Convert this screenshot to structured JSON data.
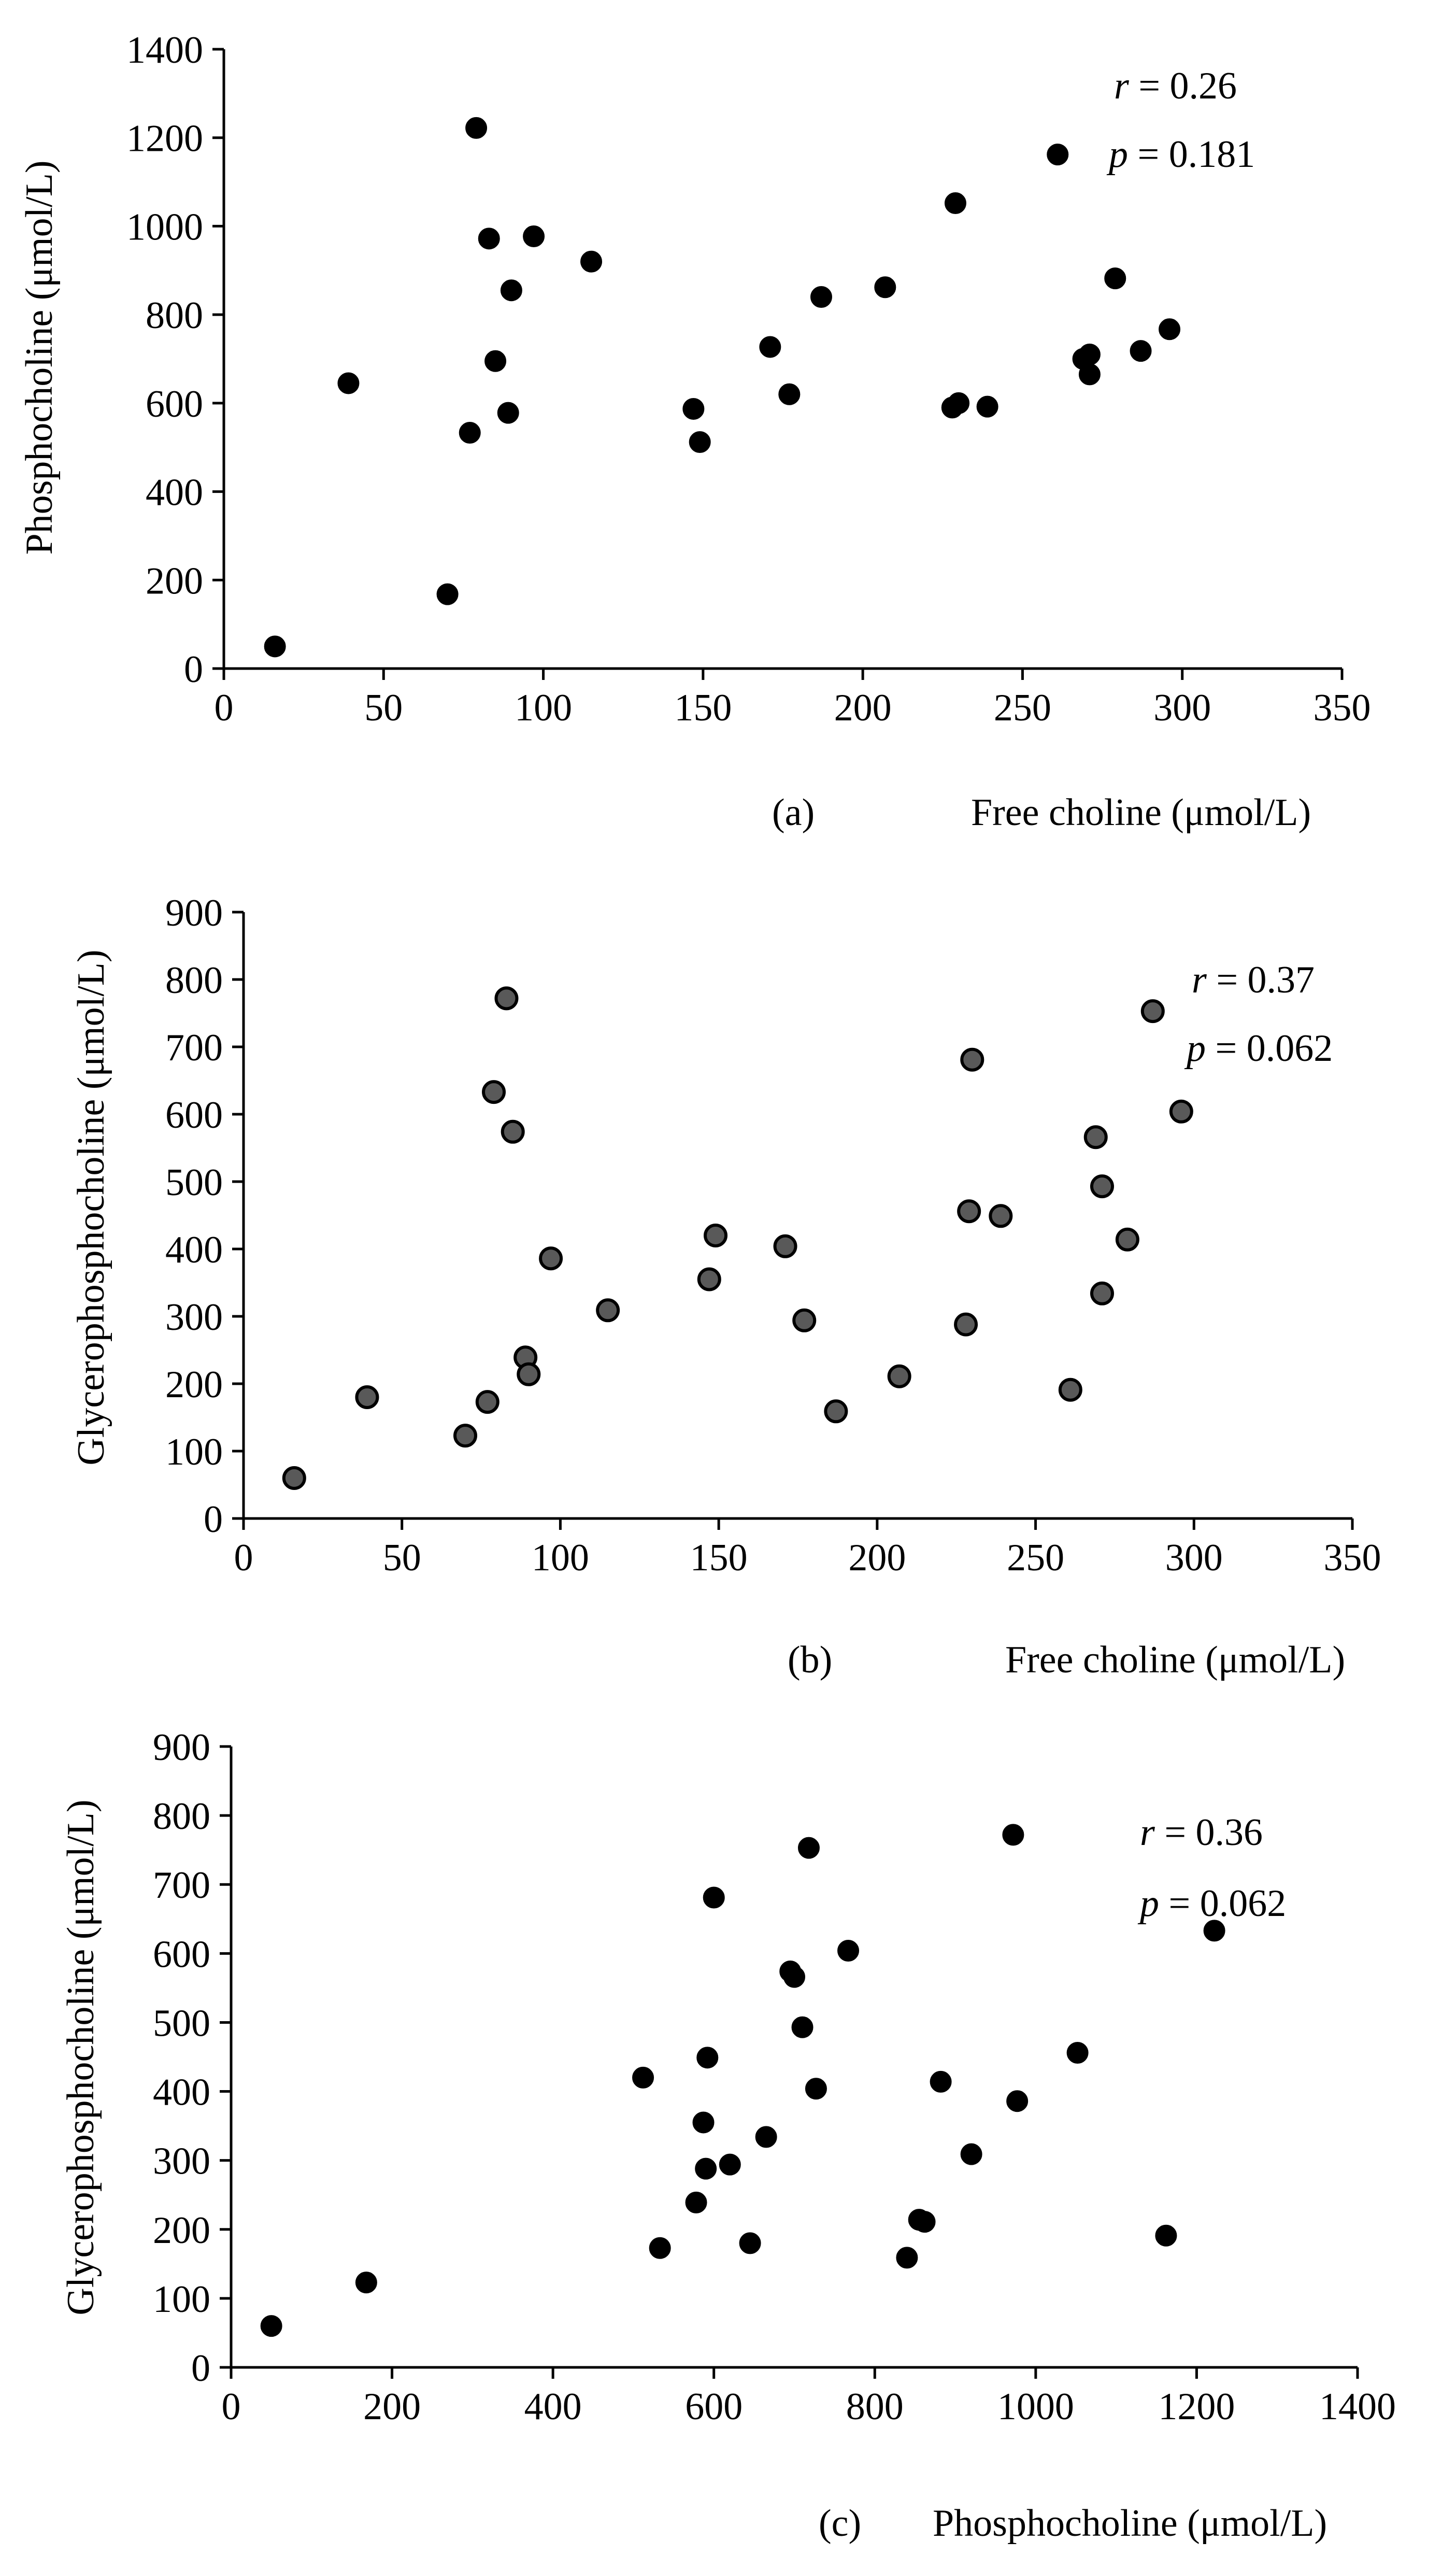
{
  "colors": {
    "axis": "#000000",
    "marker_black": "#000000",
    "marker_gray": "#595959",
    "marker_gray_edge": "#000000",
    "background": "#ffffff"
  },
  "chart_data": [
    {
      "type": "scatter",
      "panel_label": "(a)",
      "title": "",
      "xlabel": "Free choline (μmol/L)",
      "ylabel": "Phosphocholine (μmol/L)",
      "xlim": [
        0,
        350
      ],
      "ylim": [
        0,
        1400
      ],
      "xticks": [
        0,
        50,
        100,
        150,
        200,
        250,
        300,
        350
      ],
      "yticks": [
        0,
        200,
        400,
        600,
        800,
        1000,
        1200,
        1400
      ],
      "grid": false,
      "marker": "black",
      "stats": {
        "r_label": "r",
        "r_text": " = 0.26",
        "p_label": "p",
        "p_text": " = 0.181"
      },
      "points": [
        [
          16,
          50
        ],
        [
          39,
          645
        ],
        [
          70,
          168
        ],
        [
          77,
          533
        ],
        [
          79,
          1222
        ],
        [
          83,
          972
        ],
        [
          85,
          695
        ],
        [
          89,
          578
        ],
        [
          90,
          855
        ],
        [
          97,
          977
        ],
        [
          115,
          920
        ],
        [
          147,
          587
        ],
        [
          149,
          512
        ],
        [
          171,
          727
        ],
        [
          177,
          620
        ],
        [
          187,
          840
        ],
        [
          207,
          862
        ],
        [
          228,
          590
        ],
        [
          229,
          1052
        ],
        [
          230,
          600
        ],
        [
          239,
          592
        ],
        [
          261,
          1162
        ],
        [
          269,
          700
        ],
        [
          271,
          710
        ],
        [
          271,
          665
        ],
        [
          279,
          882
        ],
        [
          287,
          718
        ],
        [
          296,
          767
        ]
      ]
    },
    {
      "type": "scatter",
      "panel_label": "(b)",
      "title": "",
      "xlabel": "Free choline (μmol/L)",
      "ylabel": "Glycerophosphocholine (μmol/L)",
      "xlim": [
        0,
        350
      ],
      "ylim": [
        0,
        900
      ],
      "xticks": [
        0,
        50,
        100,
        150,
        200,
        250,
        300,
        350
      ],
      "yticks": [
        0,
        100,
        200,
        300,
        400,
        500,
        600,
        700,
        800,
        900
      ],
      "grid": false,
      "marker": "gray",
      "stats": {
        "r_label": "r",
        "r_text": " = 0.37",
        "p_label": "p",
        "p_text": " = 0.062"
      },
      "points": [
        [
          16,
          60
        ],
        [
          39,
          180
        ],
        [
          70,
          123
        ],
        [
          77,
          173
        ],
        [
          79,
          633
        ],
        [
          83,
          772
        ],
        [
          85,
          574
        ],
        [
          89,
          239
        ],
        [
          90,
          214
        ],
        [
          97,
          386
        ],
        [
          115,
          309
        ],
        [
          147,
          355
        ],
        [
          149,
          420
        ],
        [
          171,
          404
        ],
        [
          177,
          294
        ],
        [
          187,
          159
        ],
        [
          207,
          211
        ],
        [
          228,
          288
        ],
        [
          229,
          456
        ],
        [
          230,
          681
        ],
        [
          239,
          449
        ],
        [
          261,
          191
        ],
        [
          269,
          566
        ],
        [
          271,
          493
        ],
        [
          271,
          334
        ],
        [
          279,
          414
        ],
        [
          287,
          753
        ],
        [
          296,
          604
        ]
      ]
    },
    {
      "type": "scatter",
      "panel_label": "(c)",
      "title": "",
      "xlabel": "Phosphocholine (μmol/L)",
      "ylabel": "Glycerophosphocholine (μmol/L)",
      "xlim": [
        0,
        1400
      ],
      "ylim": [
        0,
        900
      ],
      "xticks": [
        0,
        200,
        400,
        600,
        800,
        1000,
        1200,
        1400
      ],
      "yticks": [
        0,
        100,
        200,
        300,
        400,
        500,
        600,
        700,
        800,
        900
      ],
      "grid": false,
      "marker": "black",
      "stats": {
        "r_label": "r",
        "r_text": " = 0.36",
        "p_label": "p",
        "p_text": " = 0.062"
      },
      "points": [
        [
          50,
          60
        ],
        [
          168,
          123
        ],
        [
          512,
          420
        ],
        [
          533,
          173
        ],
        [
          578,
          239
        ],
        [
          587,
          355
        ],
        [
          590,
          288
        ],
        [
          592,
          449
        ],
        [
          600,
          681
        ],
        [
          620,
          294
        ],
        [
          645,
          180
        ],
        [
          665,
          334
        ],
        [
          695,
          574
        ],
        [
          700,
          566
        ],
        [
          710,
          493
        ],
        [
          718,
          753
        ],
        [
          727,
          404
        ],
        [
          767,
          604
        ],
        [
          840,
          159
        ],
        [
          855,
          214
        ],
        [
          862,
          211
        ],
        [
          882,
          414
        ],
        [
          920,
          309
        ],
        [
          972,
          772
        ],
        [
          977,
          386
        ],
        [
          1052,
          456
        ],
        [
          1162,
          191
        ],
        [
          1222,
          633
        ]
      ]
    }
  ]
}
